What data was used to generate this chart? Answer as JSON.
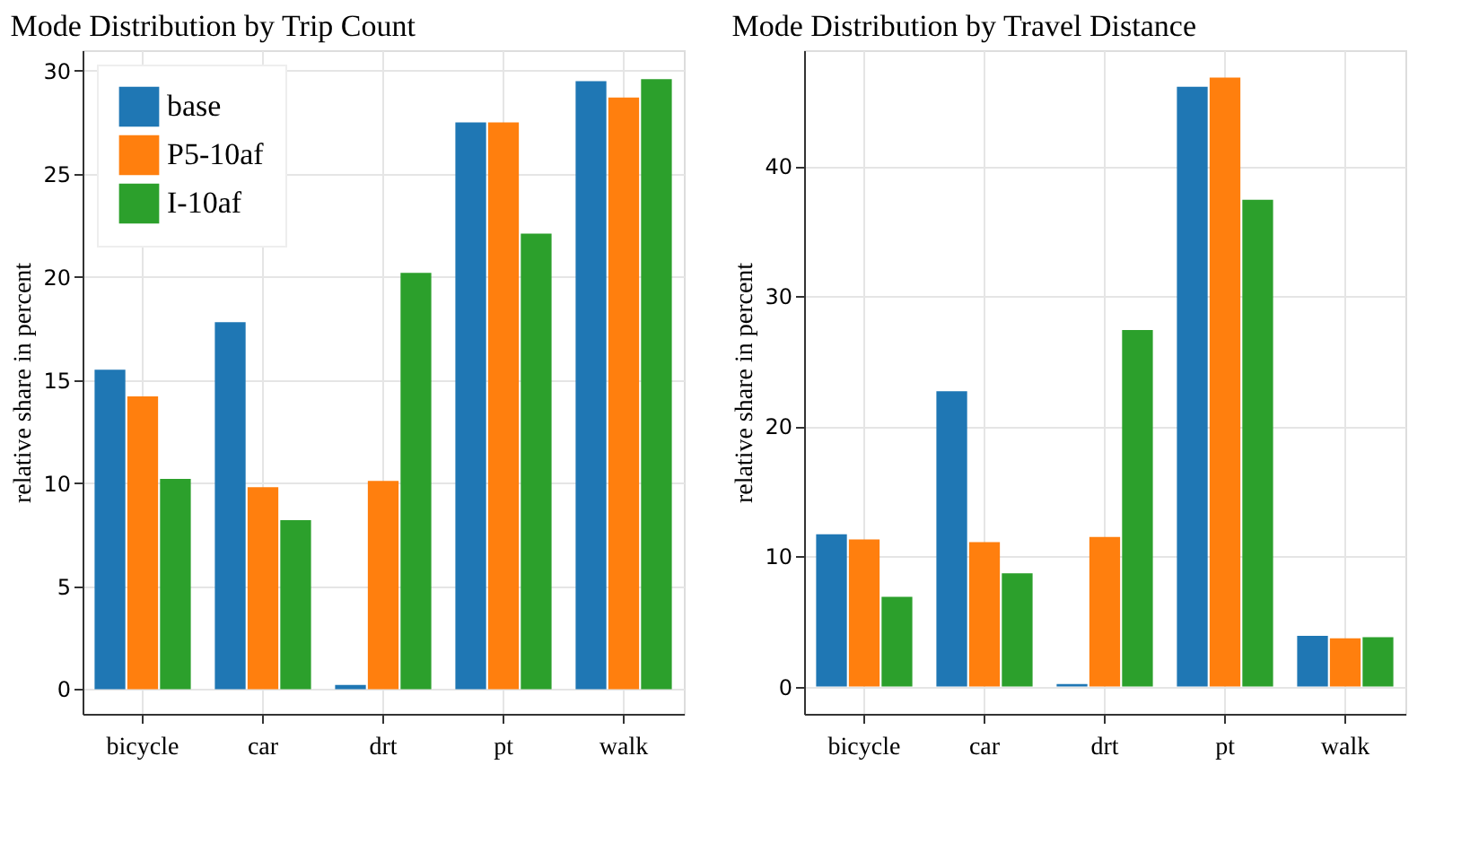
{
  "chart_data": [
    {
      "type": "bar",
      "title": "Mode Distribution by Trip Count",
      "ylabel": "relative share in percent",
      "categories": [
        "bicycle",
        "car",
        "drt",
        "pt",
        "walk"
      ],
      "series": [
        {
          "name": "base",
          "color": "#1f77b4",
          "values": [
            15.5,
            17.8,
            0.2,
            27.5,
            29.5
          ]
        },
        {
          "name": "P5-10af",
          "color": "#ff7f0e",
          "values": [
            14.2,
            9.8,
            10.1,
            27.5,
            28.7
          ]
        },
        {
          "name": "I-10af",
          "color": "#2ca02c",
          "values": [
            10.2,
            8.2,
            20.2,
            22.1,
            29.6
          ]
        }
      ],
      "ylim": [
        -1.2,
        31.0
      ],
      "yticks": [
        0,
        5,
        10,
        15,
        20,
        25,
        30
      ],
      "grid": true,
      "legend": "top left"
    },
    {
      "type": "bar",
      "title": "Mode Distribution by Travel Distance",
      "ylabel": "relative share in percent",
      "categories": [
        "bicycle",
        "car",
        "drt",
        "pt",
        "walk"
      ],
      "series": [
        {
          "name": "base",
          "color": "#1f77b4",
          "values": [
            11.7,
            22.7,
            0.2,
            46.1,
            3.9
          ]
        },
        {
          "name": "P5-10af",
          "color": "#ff7f0e",
          "values": [
            11.3,
            11.1,
            11.5,
            46.8,
            3.7
          ]
        },
        {
          "name": "I-10af",
          "color": "#2ca02c",
          "values": [
            6.9,
            8.7,
            27.4,
            37.4,
            3.8
          ]
        }
      ],
      "ylim": [
        -2.1,
        48.9
      ],
      "yticks": [
        0,
        10,
        20,
        30,
        40
      ],
      "grid": true,
      "legend": "top left"
    }
  ]
}
